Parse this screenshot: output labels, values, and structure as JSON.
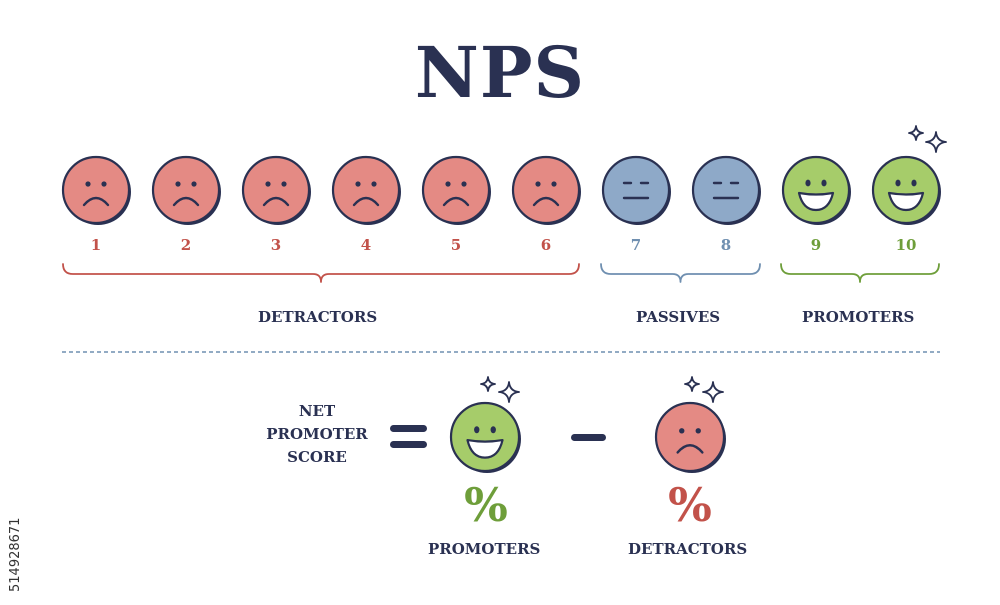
{
  "title": "NPS",
  "scale": [
    {
      "score": "1",
      "mood": "sad",
      "color": "#e48a84",
      "num_color": "#c2524a"
    },
    {
      "score": "2",
      "mood": "sad",
      "color": "#e48a84",
      "num_color": "#c2524a"
    },
    {
      "score": "3",
      "mood": "sad",
      "color": "#e48a84",
      "num_color": "#c2524a"
    },
    {
      "score": "4",
      "mood": "sad",
      "color": "#e48a84",
      "num_color": "#c2524a"
    },
    {
      "score": "5",
      "mood": "sad",
      "color": "#e48a84",
      "num_color": "#c2524a"
    },
    {
      "score": "6",
      "mood": "sad",
      "color": "#e48a84",
      "num_color": "#c2524a"
    },
    {
      "score": "7",
      "mood": "neutral",
      "color": "#8ea9c8",
      "num_color": "#6f8fb0"
    },
    {
      "score": "8",
      "mood": "neutral",
      "color": "#8ea9c8",
      "num_color": "#6f8fb0"
    },
    {
      "score": "9",
      "mood": "happy",
      "color": "#a6cc6a",
      "num_color": "#6e9e3a"
    },
    {
      "score": "10",
      "mood": "happy",
      "color": "#a6cc6a",
      "num_color": "#6e9e3a",
      "sparkle": true
    }
  ],
  "categories": {
    "detractors": {
      "label": "DETRACTORS",
      "color": "#c2524a"
    },
    "passives": {
      "label": "PASSIVES",
      "color": "#6f8fb0"
    },
    "promoters": {
      "label": "PROMOTERS",
      "color": "#6e9e3a"
    }
  },
  "formula": {
    "name_lines": [
      "NET",
      "PROMOTER",
      "SCORE"
    ],
    "equals": "=",
    "minus": "–",
    "promoters_percent": "%",
    "detractors_percent": "%",
    "promoters_label": "PROMOTERS",
    "detractors_label": "DETRACTORS"
  },
  "stock_id": "514928671",
  "colors": {
    "ink": "#2a3152",
    "divider": "#6f8fb0"
  }
}
